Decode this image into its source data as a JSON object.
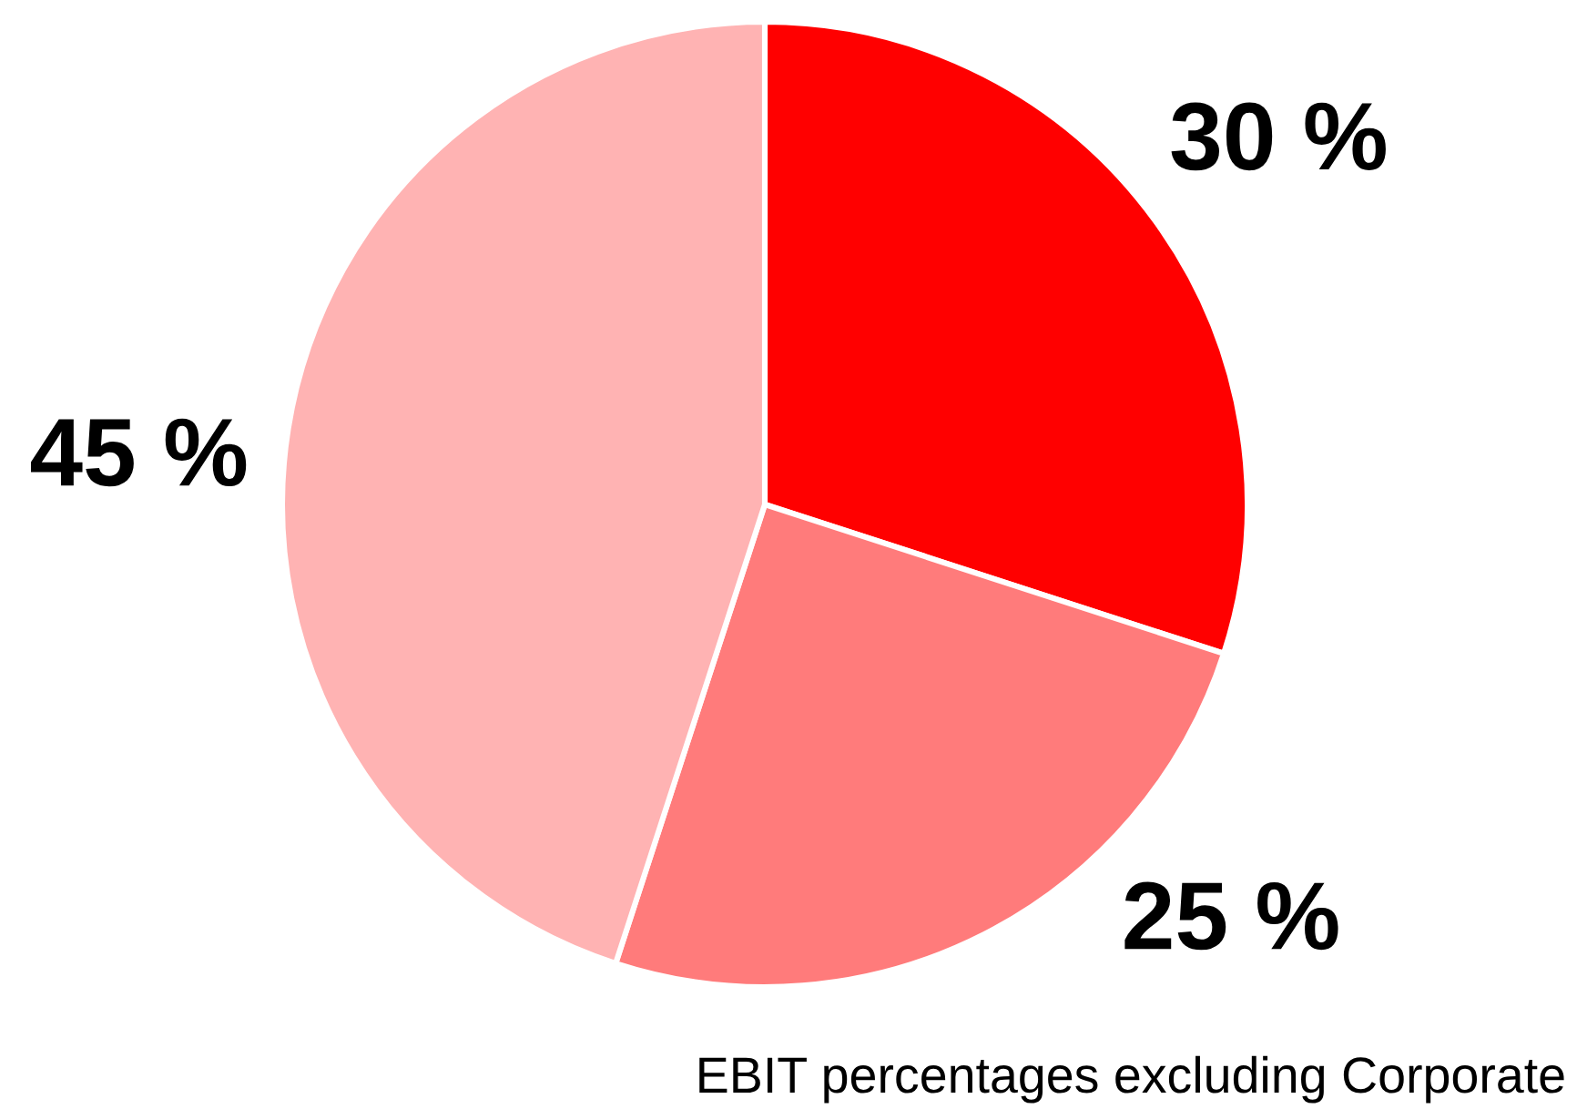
{
  "chart_data": {
    "type": "pie",
    "categories": [
      null,
      null,
      null
    ],
    "values": [
      30,
      25,
      45
    ],
    "colors": [
      "#ff0000",
      "#ff7b7b",
      "#ffb3b3"
    ],
    "value_labels": [
      "30 %",
      "25 %",
      "45 %"
    ],
    "annotations": [
      "EBIT percentages excluding Corporate"
    ]
  }
}
